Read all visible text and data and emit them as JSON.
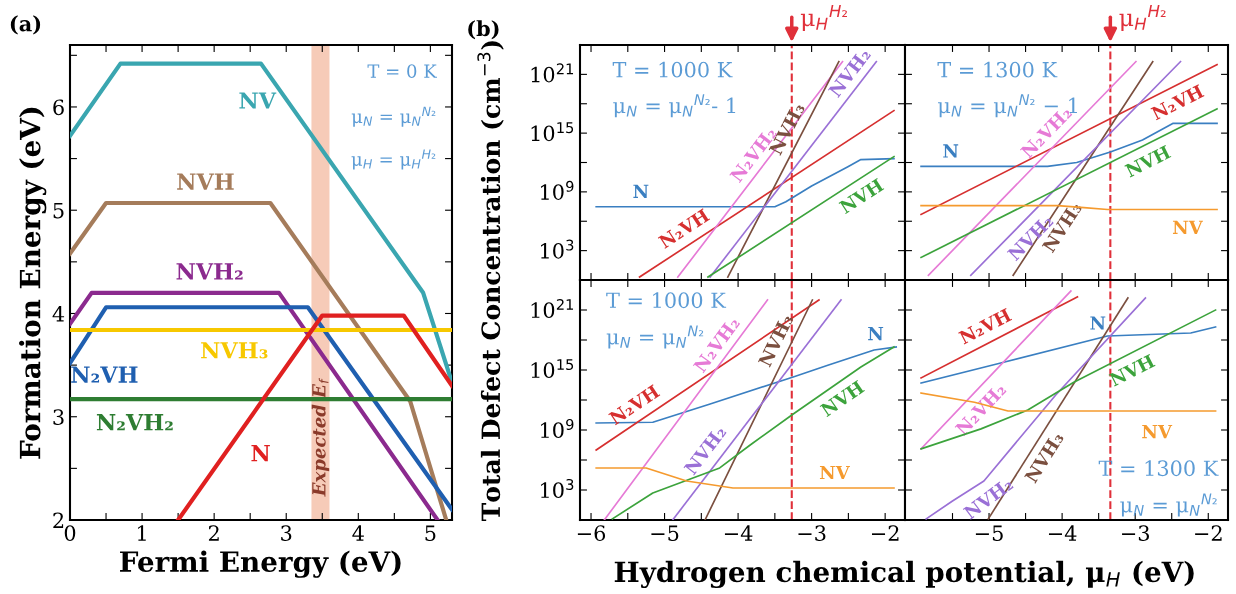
{
  "chart_data": [
    {
      "type": "line",
      "title": "(a)",
      "xlabel": "Fermi Energy (eV)",
      "ylabel": "Formation Energy (eV)",
      "xlim": [
        0,
        5.3
      ],
      "ylim": [
        2,
        6.6
      ],
      "xticks": [
        0,
        {
          "value": 0.5,
          "label": null
        },
        1,
        {
          "value": 1.5,
          "label": null
        },
        2,
        {
          "value": 2.5,
          "label": null
        },
        3,
        {
          "value": 3.5,
          "label": null
        },
        4,
        {
          "value": 4.5,
          "label": null
        },
        5
      ],
      "yticks": [
        2,
        {
          "value": 2.5,
          "label": null
        },
        3,
        {
          "value": 3.5,
          "label": null
        },
        4,
        {
          "value": 4.5,
          "label": null
        },
        5,
        {
          "value": 5.5,
          "label": null
        },
        6,
        {
          "value": 6.5,
          "label": null
        }
      ],
      "grid": false,
      "legend": false,
      "marker": "none",
      "line_style": "solid",
      "annotations": [
        "T = 0 K",
        "μ$_{N}$ = μ$_{N}$$^{N₂}$",
        "μ$_{H}$ = μ$_{H}$$^{H₂}$"
      ],
      "bands": [
        {
          "axis": "x",
          "from": 3.35,
          "to": 3.6,
          "label": "Expected E$_{f}$",
          "color": "#f6cbb8"
        }
      ],
      "series": [
        {
          "name": "NV",
          "color": "#3aa6b0",
          "x": [
            0,
            0.7,
            2.65,
            4.9,
            5.3
          ],
          "values": [
            5.72,
            6.42,
            6.42,
            4.2,
            3.33
          ]
        },
        {
          "name": "NVH",
          "color": "#a57c5b",
          "x": [
            0,
            0.5,
            2.78,
            4.72,
            5.22
          ],
          "values": [
            4.58,
            5.07,
            5.07,
            3.15,
            2.0
          ]
        },
        {
          "name": "NVH₂",
          "color": "#8b2a8e",
          "x": [
            0,
            0.3,
            2.9,
            5.1
          ],
          "values": [
            3.9,
            4.2,
            4.2,
            2.0
          ]
        },
        {
          "name": "N₂VH",
          "color": "#1f5fb0",
          "x": [
            0,
            0.5,
            3.3,
            5.3
          ],
          "values": [
            3.52,
            4.06,
            4.06,
            2.1
          ]
        },
        {
          "name": "NVH₃",
          "color": "#f7c800",
          "x": [
            0,
            5.3
          ],
          "values": [
            3.84,
            3.84
          ]
        },
        {
          "name": "N₂VH₂",
          "color": "#2e7d32",
          "x": [
            0,
            5.3
          ],
          "values": [
            3.17,
            3.17
          ]
        },
        {
          "name": "N",
          "color": "#e02020",
          "x": [
            1.5,
            3.5,
            4.63,
            5.3
          ],
          "values": [
            2.0,
            3.98,
            3.98,
            3.3
          ]
        }
      ]
    },
    {
      "type": "line",
      "title": "(b)",
      "ylabel": "Total Defect Concentration (cm$^{−3}$)",
      "log": "y",
      "xlim": [
        -6.15,
        -1.73
      ],
      "ylim": [
        1,
        1e+24
      ],
      "xticks": [
        {
          "value": -6,
          "label": null
        },
        {
          "value": -5.5,
          "label": null
        },
        {
          "value": -5,
          "label": null
        },
        {
          "value": -4.5,
          "label": null
        },
        {
          "value": -4,
          "label": null
        },
        {
          "value": -3.5,
          "label": null
        },
        {
          "value": -3,
          "label": null
        },
        {
          "value": -2.5,
          "label": null
        },
        {
          "value": -2,
          "label": null
        }
      ],
      "yticks": [
        {
          "value": 1000.0,
          "label": "10$^{3}$"
        },
        {
          "value": 1000000.0,
          "label": null
        },
        {
          "value": 1000000000.0,
          "label": "10$^{9}$"
        },
        {
          "value": 1000000000000.0,
          "label": null
        },
        {
          "value": 1000000000000000.0,
          "label": "10$^{15}$"
        },
        {
          "value": 1e+18,
          "label": null
        },
        {
          "value": 1e+21,
          "label": "10$^{21}$"
        }
      ],
      "tick_labels": "y",
      "grid": false,
      "legend": false,
      "marker": "none",
      "line_style": "solid",
      "annotations": [
        "T = 1000 K",
        "μ$_{N}$ = μ$_{N}$$^{N₂}$- 1"
      ],
      "ref_lines": [
        {
          "axis": "x",
          "value": -3.27,
          "label": "μ$_{H}$$^{H₂}$",
          "color": "#e0303a",
          "line_style": "dashed"
        }
      ],
      "series": [
        {
          "name": "N",
          "color": "#3a7fc1",
          "x": [
            -5.93,
            -3.5,
            -3.35,
            -3.0,
            -2.5,
            -2.33,
            -1.88
          ],
          "values": [
            30000000.0,
            30000000.0,
            100000000.0,
            4000000000.0,
            400000000000.0,
            2000000000000.0,
            2500000000000.0
          ]
        },
        {
          "name": "N₂VH",
          "color": "#d62f2f",
          "x": [
            -5.34,
            -1.88
          ],
          "values": [
            2.0,
            2e+17
          ]
        },
        {
          "name": "N₂VH₂",
          "color": "#e67ad6",
          "x": [
            -4.82,
            -2.58
          ],
          "values": [
            2.0,
            2e+22
          ]
        },
        {
          "name": "NVH₃",
          "color": "#7b4f3f",
          "x": [
            -4.14,
            -2.63
          ],
          "values": [
            2.0,
            2e+22
          ]
        },
        {
          "name": "NVH₂",
          "color": "#9a70d6",
          "x": [
            -4.38,
            -2.12
          ],
          "values": [
            2.0,
            2e+22
          ]
        },
        {
          "name": "NVH",
          "color": "#3ca33c",
          "x": [
            -4.41,
            -1.88
          ],
          "values": [
            2.0,
            4000000000000.0
          ]
        }
      ]
    },
    {
      "type": "line",
      "log": "y",
      "xlim": [
        -6.15,
        -1.73
      ],
      "ylim": [
        1,
        1e+24
      ],
      "xticks": [
        {
          "value": -5.5,
          "label": null
        },
        {
          "value": -5,
          "label": null
        },
        {
          "value": -4.5,
          "label": null
        },
        {
          "value": -4,
          "label": null
        },
        {
          "value": -3.5,
          "label": null
        },
        {
          "value": -3,
          "label": null
        },
        {
          "value": -2.5,
          "label": null
        },
        {
          "value": -2,
          "label": null
        }
      ],
      "yticks": [
        {
          "value": 1000.0,
          "label": null
        },
        {
          "value": 1000000.0,
          "label": null
        },
        {
          "value": 1000000000.0,
          "label": null
        },
        {
          "value": 1000000000000.0,
          "label": null
        },
        {
          "value": 1000000000000000.0,
          "label": null
        },
        {
          "value": 1e+18,
          "label": null
        },
        {
          "value": 1e+21,
          "label": null
        }
      ],
      "tick_labels": false,
      "grid": false,
      "legend": false,
      "marker": "none",
      "line_style": "solid",
      "annotations": [
        "T = 1300 K",
        "μ$_{N}$ = μ$_{N}$$^{N₂}$ − 1"
      ],
      "ref_lines": [
        {
          "axis": "x",
          "value": -3.34,
          "label": "μ$_{H}$$^{H₂}$",
          "color": "#e0303a",
          "line_style": "dashed"
        }
      ],
      "series": [
        {
          "name": "N",
          "color": "#3a7fc1",
          "x": [
            -5.93,
            -4.2,
            -3.8,
            -3.34,
            -2.9,
            -2.48,
            -1.88
          ],
          "values": [
            400000000000.0,
            400000000000.0,
            1000000000000.0,
            12000000000000.0,
            200000000000000.0,
            1e+16,
            1e+16
          ]
        },
        {
          "name": "N₂VH",
          "color": "#d62f2f",
          "x": [
            -5.93,
            -1.88
          ],
          "values": [
            5000000.0,
            1e+22
          ]
        },
        {
          "name": "N₂VH₂",
          "color": "#e67ad6",
          "x": [
            -5.83,
            -2.99
          ],
          "values": [
            3.0,
            2e+22
          ]
        },
        {
          "name": "NVH₃",
          "color": "#7b4f3f",
          "x": [
            -4.67,
            -2.76
          ],
          "values": [
            3.0,
            2e+22
          ]
        },
        {
          "name": "NVH₂",
          "color": "#9a70d6",
          "x": [
            -5.25,
            -2.38
          ],
          "values": [
            3.0,
            2e+22
          ]
        },
        {
          "name": "NVH",
          "color": "#3ca33c",
          "x": [
            -5.93,
            -1.88
          ],
          "values": [
            200.0,
            3e+17
          ]
        },
        {
          "name": "NV",
          "color": "#f59a2e",
          "x": [
            -5.93,
            -4.06,
            -3.7,
            -3.38,
            -1.88
          ],
          "values": [
            40000000.0,
            40000000.0,
            25000000.0,
            16000000.0,
            16000000.0
          ]
        }
      ]
    },
    {
      "type": "line",
      "xlabel": "Hydrogen chemical potential, μ$_{H}$ (eV)",
      "log": "y",
      "xlim": [
        -6.15,
        -1.73
      ],
      "ylim": [
        1,
        1e+24
      ],
      "xticks": [
        -6,
        {
          "value": -5.5,
          "label": null
        },
        -5,
        {
          "value": -4.5,
          "label": null
        },
        -4,
        {
          "value": -3.5,
          "label": null
        },
        -3,
        {
          "value": -2.5,
          "label": null
        },
        -2
      ],
      "yticks": [
        {
          "value": 1000.0,
          "label": "10$^{3}$"
        },
        {
          "value": 1000000.0,
          "label": null
        },
        {
          "value": 1000000000.0,
          "label": "10$^{9}$"
        },
        {
          "value": 1000000000000.0,
          "label": null
        },
        {
          "value": 1000000000000000.0,
          "label": "10$^{15}$"
        },
        {
          "value": 1e+18,
          "label": null
        },
        {
          "value": 1e+21,
          "label": "10$^{21}$"
        }
      ],
      "grid": false,
      "legend": false,
      "marker": "none",
      "line_style": "solid",
      "annotations": [
        "T = 1000 K",
        "μ$_{N}$ = μ$_{N}$$^{N₂}$"
      ],
      "ref_lines": [
        {
          "axis": "x",
          "value": -3.27,
          "color": "#e0303a",
          "line_style": "dashed"
        }
      ],
      "series": [
        {
          "name": "N",
          "color": "#3a7fc1",
          "x": [
            -5.93,
            -5.16,
            -4.38,
            -3.25,
            -2.78,
            -2.15,
            -1.85
          ],
          "values": [
            5000000000.0,
            6000000000.0,
            400000000000.0,
            200000000000000.0,
            3000000000000000.0,
            1e+17,
            2e+17
          ]
        },
        {
          "name": "N₂VH",
          "color": "#d62f2f",
          "x": [
            -5.93,
            -2.9
          ],
          "values": [
            10000000.0,
            1e+22
          ]
        },
        {
          "name": "N₂VH₂",
          "color": "#e67ad6",
          "x": [
            -5.82,
            -3.6
          ],
          "values": [
            1.0,
            1e+22
          ]
        },
        {
          "name": "NVH₃",
          "color": "#7b4f3f",
          "x": [
            -4.45,
            -2.99
          ],
          "values": [
            1.0,
            1e+22
          ]
        },
        {
          "name": "NVH₂",
          "color": "#9a70d6",
          "x": [
            -4.89,
            -2.6
          ],
          "values": [
            1.0,
            1e+22
          ]
        },
        {
          "name": "NVH",
          "color": "#3ca33c",
          "x": [
            -5.71,
            -5.16,
            -4.25,
            -3.84,
            -3.25,
            -2.33,
            -1.88
          ],
          "values": [
            1.3,
            500.0,
            160000.0,
            30000000.0,
            40000000000.0,
            2000000000000000.0,
            2e+17
          ]
        },
        {
          "name": "NV",
          "color": "#f59a2e",
          "x": [
            -5.93,
            -5.25,
            -4.7,
            -4.07,
            -1.88
          ],
          "values": [
            160000.0,
            160000.0,
            8000.0,
            1600.0,
            1600.0
          ]
        }
      ]
    },
    {
      "type": "line",
      "log": "y",
      "xlim": [
        -6.15,
        -1.73
      ],
      "ylim": [
        1,
        1e+24
      ],
      "xticks": [
        {
          "value": -5.5,
          "label": null
        },
        -5,
        {
          "value": -4.5,
          "label": null
        },
        -4,
        {
          "value": -3.5,
          "label": null
        },
        -3,
        {
          "value": -2.5,
          "label": null
        },
        -2
      ],
      "yticks": [
        {
          "value": 1000.0,
          "label": null
        },
        {
          "value": 1000000.0,
          "label": null
        },
        {
          "value": 1000000000.0,
          "label": null
        },
        {
          "value": 1000000000000.0,
          "label": null
        },
        {
          "value": 1000000000000000.0,
          "label": null
        },
        {
          "value": 1e+18,
          "label": null
        },
        {
          "value": 1e+21,
          "label": null
        }
      ],
      "tick_labels": "x",
      "grid": false,
      "legend": false,
      "marker": "none",
      "line_style": "solid",
      "annotations": [
        "T = 1300 K",
        "μ$_{N}$ = μ$_{N}$$^{N₂}$"
      ],
      "ref_lines": [
        {
          "axis": "x",
          "value": -3.34,
          "color": "#e0303a",
          "line_style": "dashed"
        }
      ],
      "series": [
        {
          "name": "N",
          "color": "#3a7fc1",
          "x": [
            -5.93,
            -4.84,
            -3.38,
            -2.24,
            -1.9
          ],
          "values": [
            50000000000000.0,
            5000000000000000.0,
            2.5e+18,
            5e+18,
            2e+19
          ]
        },
        {
          "name": "N₂VH",
          "color": "#d62f2f",
          "x": [
            -5.93,
            -3.79
          ],
          "values": [
            160000000000000.0,
            2e+22
          ]
        },
        {
          "name": "N₂VH₂",
          "color": "#e67ad6",
          "x": [
            -5.93,
            -3.88
          ],
          "values": [
            13000000.0,
            8e+22
          ]
        },
        {
          "name": "NVH₃",
          "color": "#7b4f3f",
          "x": [
            -5.01,
            -3.1
          ],
          "values": [
            1.3,
            1.6e+22
          ]
        },
        {
          "name": "NVH₂",
          "color": "#9a70d6",
          "x": [
            -5.86,
            -5.5,
            -5.07,
            -4.09,
            -2.86
          ],
          "values": [
            1.3,
            80.0,
            8000.0,
            3000000000000.0,
            1.6e+22
          ]
        },
        {
          "name": "NVH",
          "color": "#3ca33c",
          "x": [
            -5.93,
            -5.11,
            -4.47,
            -3.84,
            -1.9
          ],
          "values": [
            13000000.0,
            1300000000.0,
            100000000000.0,
            60000000000000.0,
            1e+21
          ]
        },
        {
          "name": "NV",
          "color": "#f59a2e",
          "x": [
            -5.93,
            -5.2,
            -4.74,
            -1.9
          ],
          "values": [
            5000000000000.0,
            600000000000.0,
            80000000000.0,
            80000000000.0
          ]
        }
      ]
    }
  ]
}
